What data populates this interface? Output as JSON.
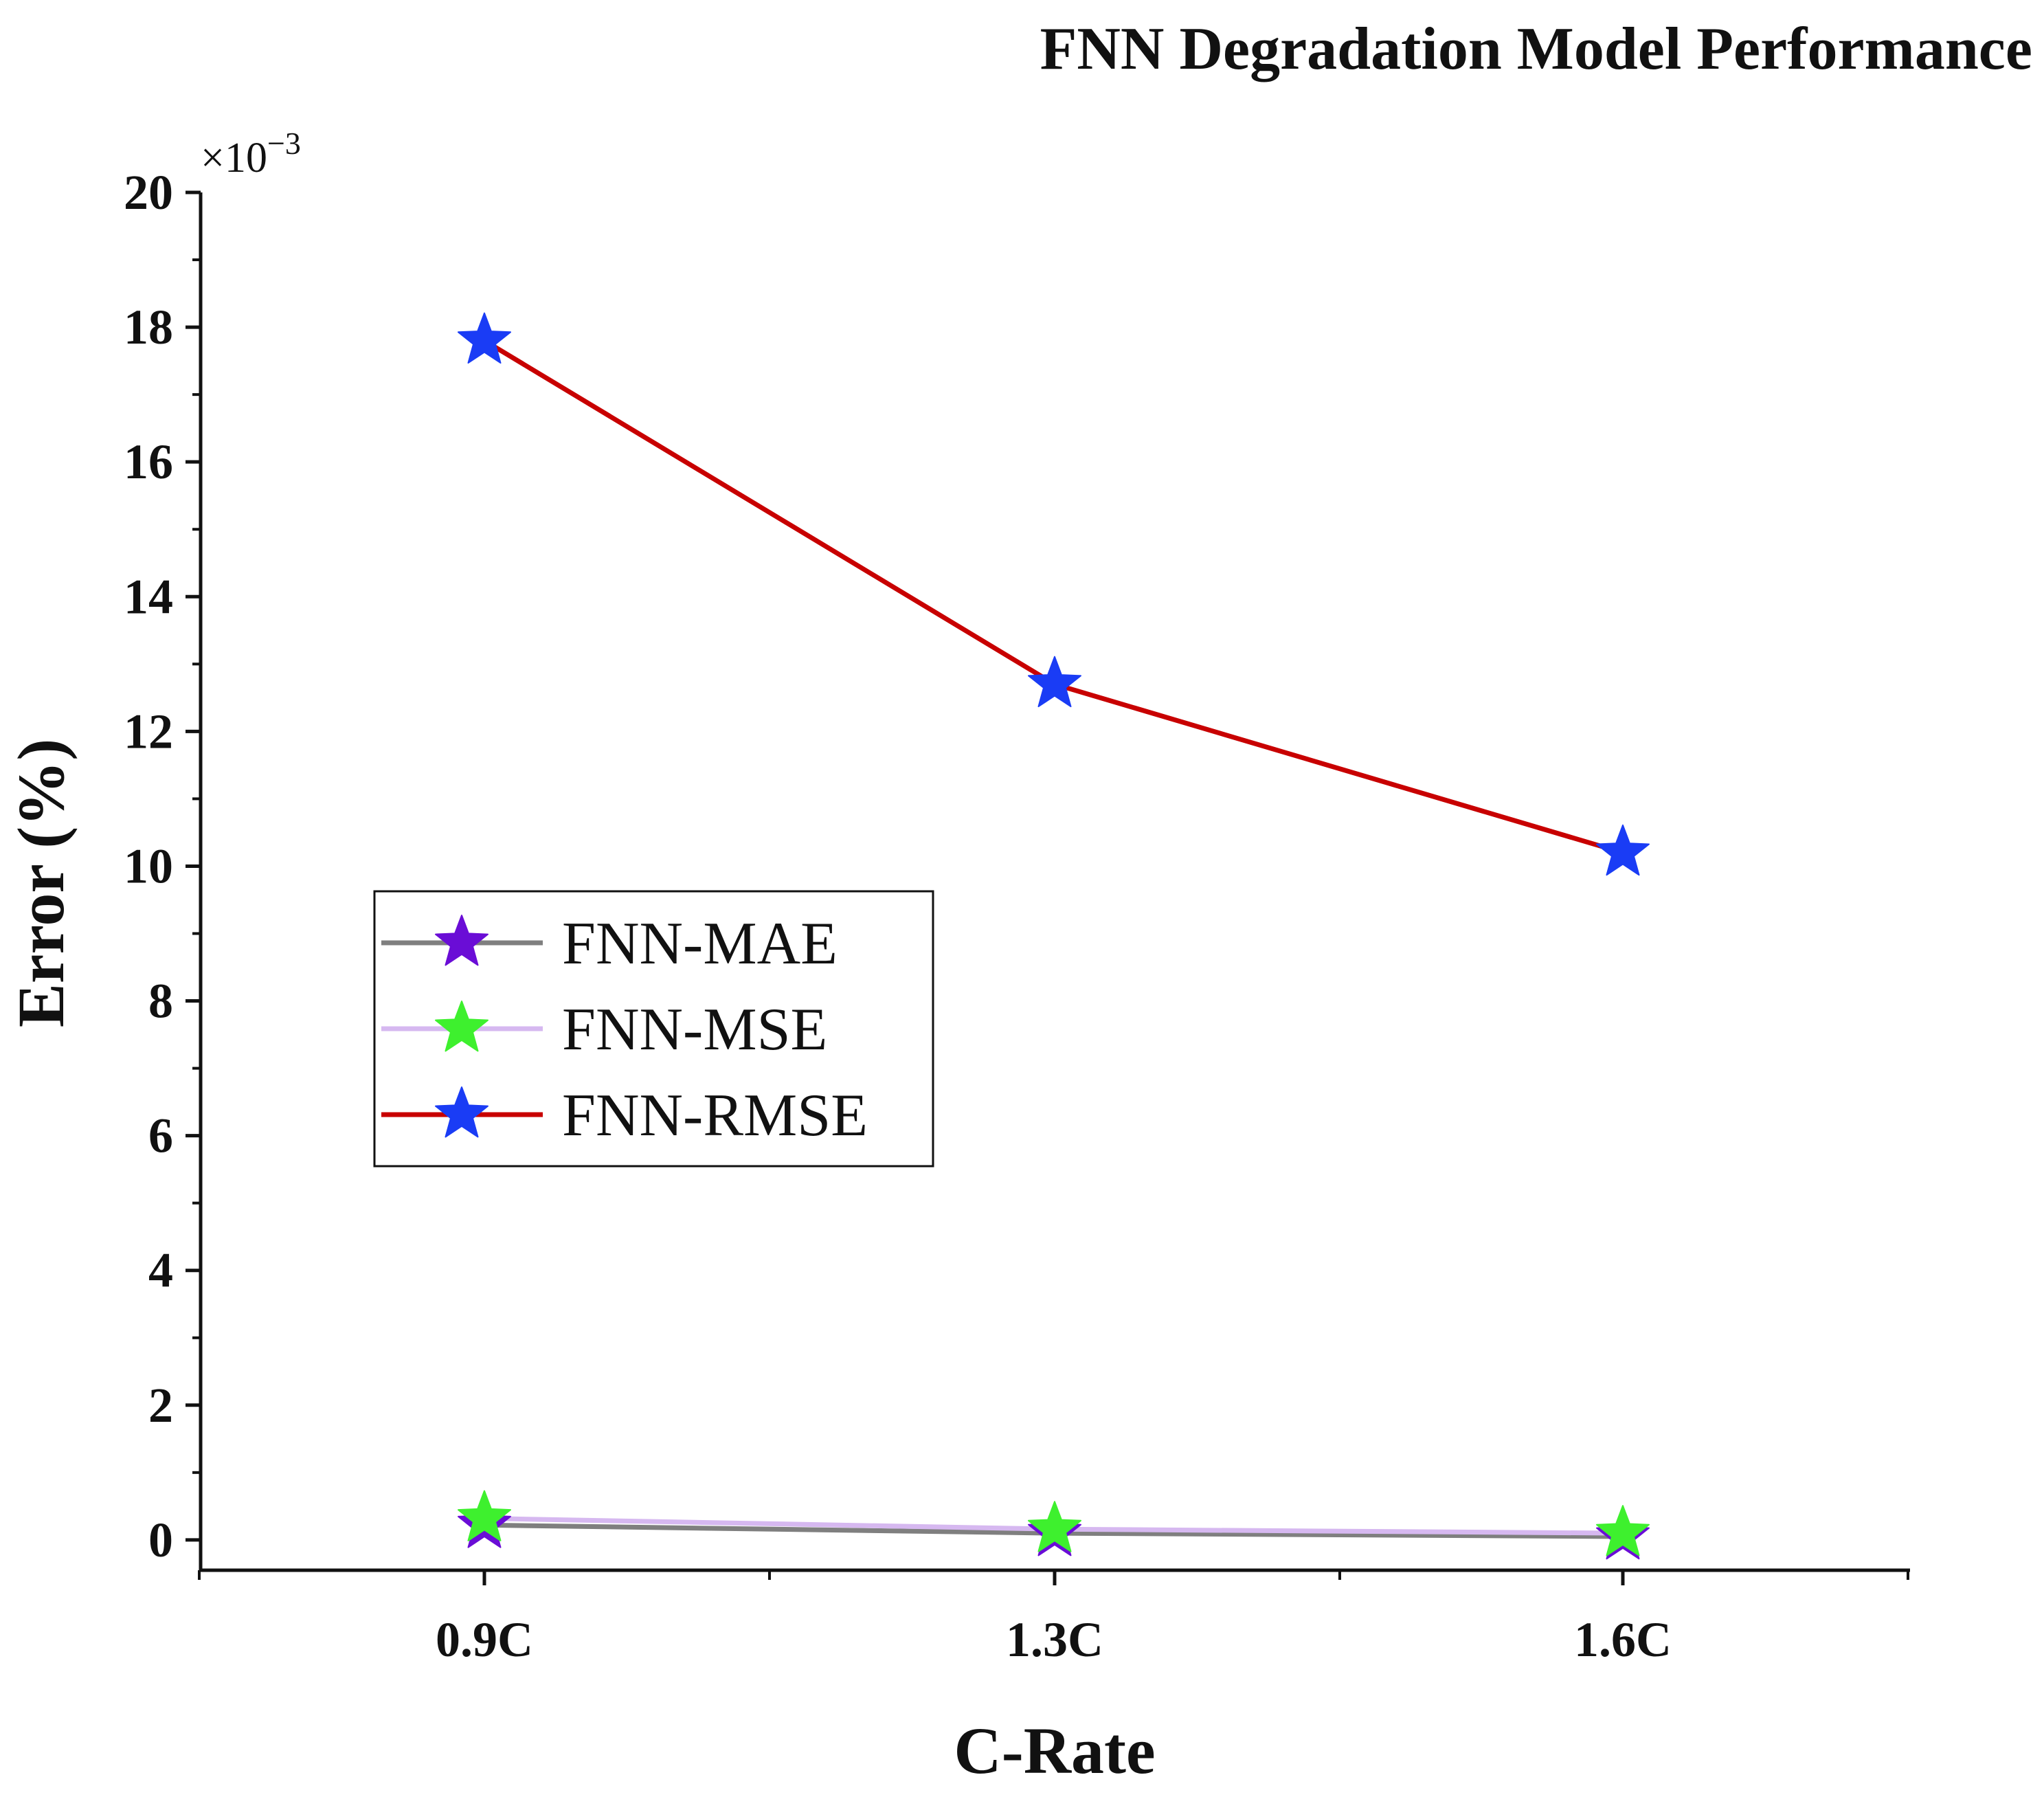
{
  "chart_data": {
    "type": "line",
    "title": "FNN Degradation Model Performance at Different C-Rate",
    "xlabel": "C-Rate",
    "ylabel": "Error (%)",
    "y_multiplier_label": "×10",
    "y_multiplier_exp": "−3",
    "categories": [
      "0.9C",
      "1.3C",
      "1.6C"
    ],
    "ylim": [
      -0.45,
      20
    ],
    "yticks": [
      0,
      2,
      4,
      6,
      8,
      10,
      12,
      14,
      16,
      18,
      20
    ],
    "ytick_labels": [
      "0",
      "2",
      "4",
      "6",
      "8",
      "10",
      "12",
      "14",
      "16",
      "18",
      "20"
    ],
    "legend_position": "left-middle",
    "series": [
      {
        "name": "FNN-MAE",
        "values": [
          0.22,
          0.1,
          0.05
        ],
        "line_color": "#7f7f7f",
        "marker_color": "#6a0dd6",
        "marker": "star"
      },
      {
        "name": "FNN-MSE",
        "values": [
          0.32,
          0.16,
          0.1
        ],
        "line_color": "#d6b8f0",
        "marker_color": "#3ef02e",
        "marker": "star"
      },
      {
        "name": "FNN-RMSE",
        "values": [
          17.8,
          12.7,
          10.2
        ],
        "line_color": "#c80000",
        "marker_color": "#1a3cf5",
        "marker": "star"
      }
    ]
  }
}
